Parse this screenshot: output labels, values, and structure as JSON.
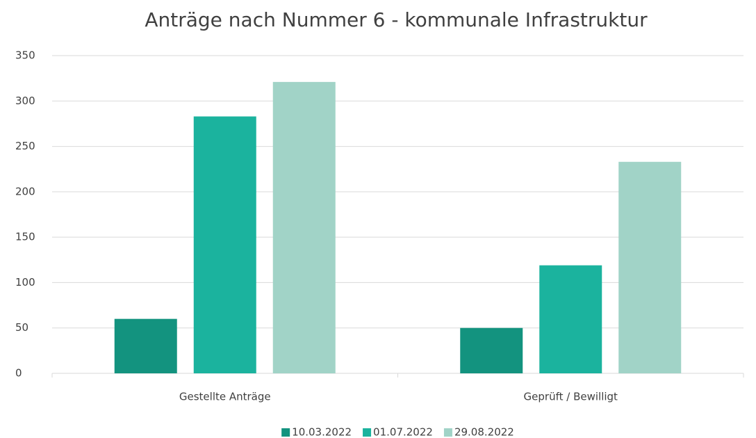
{
  "chart_data": {
    "type": "bar",
    "title": "Anträge nach Nummer 6 - kommunale Infrastruktur",
    "categories": [
      "Gestellte Anträge",
      "Geprüft / Bewilligt"
    ],
    "series": [
      {
        "name": "10.03.2022",
        "color": "#13937f",
        "values": [
          60,
          50
        ]
      },
      {
        "name": "01.07.2022",
        "color": "#1bb39e",
        "values": [
          283,
          119
        ]
      },
      {
        "name": "29.08.2022",
        "color": "#a1d3c7",
        "values": [
          321,
          233
        ]
      }
    ],
    "ylim": [
      0,
      350
    ],
    "yticks": [
      0,
      50,
      100,
      150,
      200,
      250,
      300,
      350
    ],
    "grid": true,
    "legend": "bottom"
  }
}
